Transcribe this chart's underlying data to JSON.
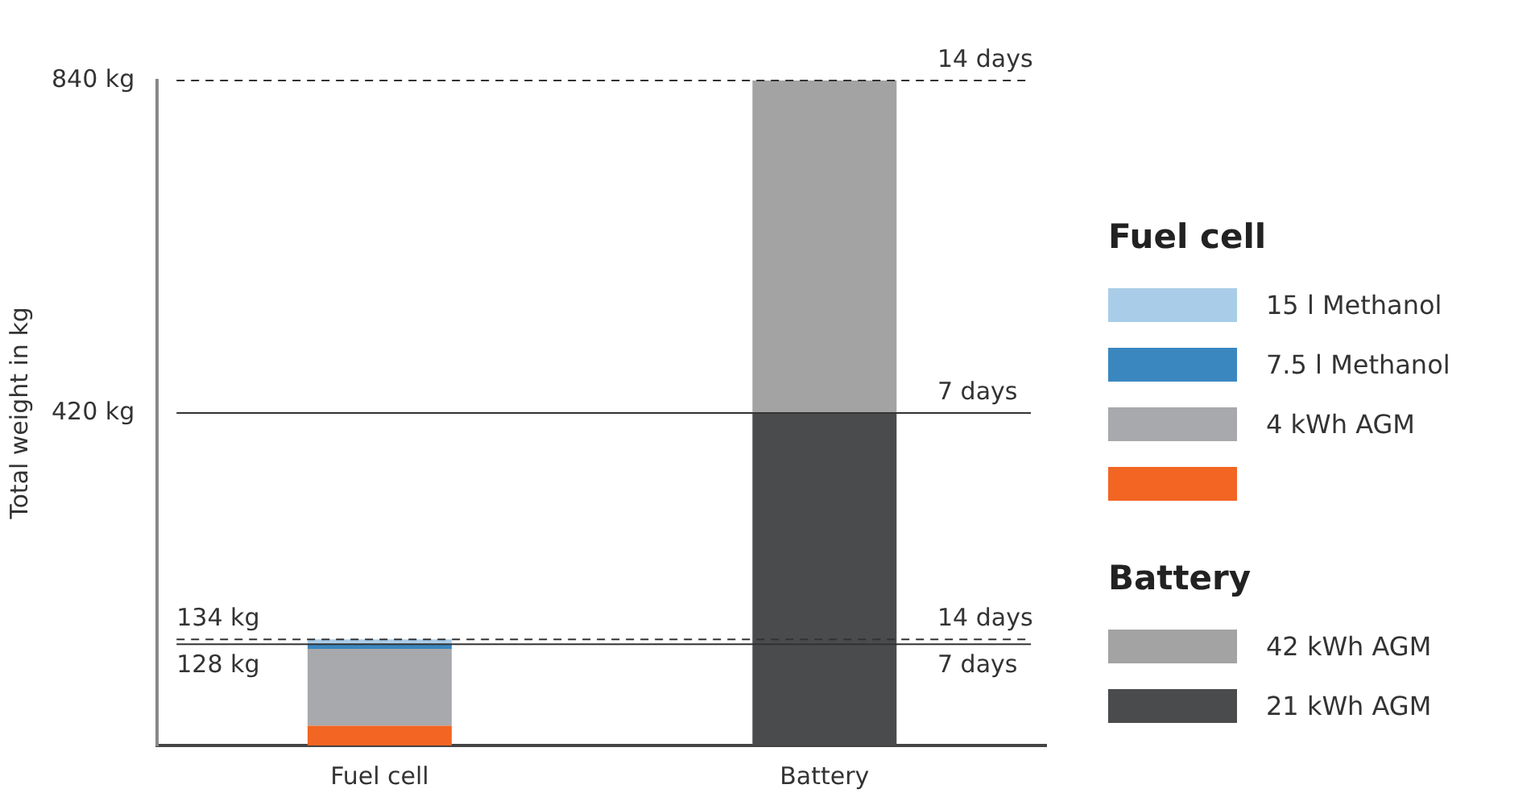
{
  "chart_data": {
    "type": "bar",
    "stacked": true,
    "categories": [
      "Fuel cell",
      "Battery"
    ],
    "ylabel": "Total weight in kg",
    "ylim": [
      0,
      840
    ],
    "yticks": [
      {
        "value": 420,
        "label": "420 kg"
      },
      {
        "value": 840,
        "label": "840 kg"
      }
    ],
    "grid": false,
    "legend": "right",
    "series": [
      {
        "color": "#f26522",
        "values": [
          25,
          null
        ]
      },
      {
        "name": "4 kWh AGM",
        "color": "#a7a9ac",
        "values": [
          97,
          null
        ]
      },
      {
        "name": "7.5 l Methanol",
        "color": "#3a87c0",
        "values": [
          6,
          null
        ]
      },
      {
        "name": "15 l Methanol",
        "color": "#a9cde8",
        "values": [
          6,
          null
        ]
      },
      {
        "name": "21 kWh AGM",
        "color": "#4a4b4d",
        "values": [
          null,
          420
        ]
      },
      {
        "name": "42 kWh AGM",
        "color": "#a3a3a3",
        "values": [
          null,
          420
        ]
      }
    ],
    "ref_lines": [
      {
        "axis": "y",
        "value": 840,
        "color": "#333333",
        "line_style": "dashed"
      },
      {
        "axis": "y",
        "value": 420,
        "color": "#333333",
        "line_style": "solid"
      },
      {
        "axis": "y",
        "value": 134,
        "label": "134 kg",
        "color": "#333333",
        "line_style": "dashed"
      },
      {
        "axis": "y",
        "value": 128,
        "label": "128 kg",
        "color": "#333333",
        "line_style": "solid"
      }
    ],
    "annotations": [
      {
        "text": "14 days",
        "y": 840
      },
      {
        "text": "7 days",
        "y": 420
      },
      {
        "text": "14 days",
        "y": 134
      },
      {
        "text": "7 days",
        "y": 128
      }
    ]
  }
}
